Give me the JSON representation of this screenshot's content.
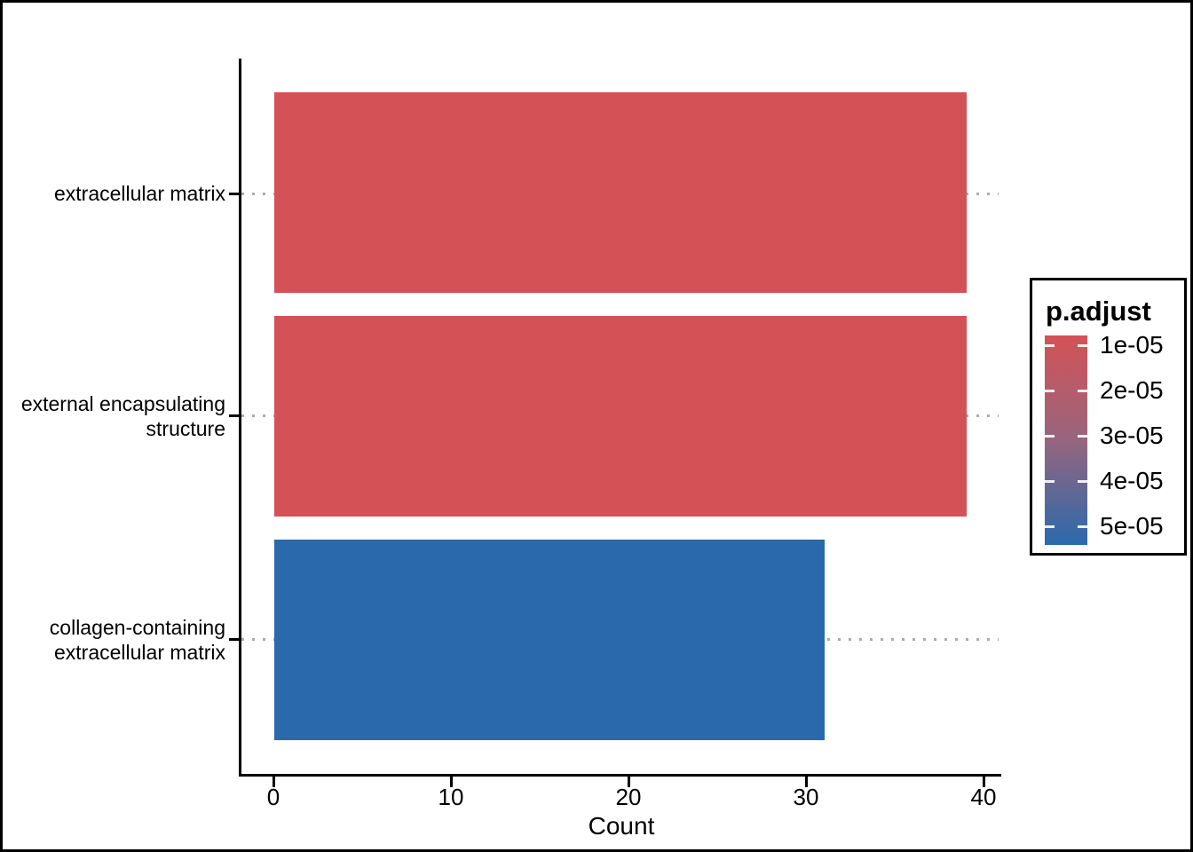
{
  "chart_data": {
    "type": "bar",
    "orientation": "horizontal",
    "title": "",
    "xlabel": "Count",
    "ylabel": "",
    "categories": [
      "extracellular matrix",
      "external encapsulating structure",
      "collagen-containing extracellular matrix"
    ],
    "label_lines": [
      [
        "extracellular matrix"
      ],
      [
        "external encapsulating",
        "structure"
      ],
      [
        "collagen-containing",
        "extracellular matrix"
      ]
    ],
    "values": [
      39,
      39,
      31
    ],
    "bar_colors": [
      "#D45256",
      "#D45256",
      "#2A6AAC"
    ],
    "x_ticks": [
      "0",
      "10",
      "20",
      "30",
      "40"
    ],
    "xlim": [
      0,
      40
    ],
    "grid": {
      "style": "dotted",
      "color": "#ABABAB",
      "direction": "horizontal"
    },
    "legend": {
      "title": "p.adjust",
      "position": "right",
      "kind": "continuous-gradient",
      "tick_labels": [
        "1e-05",
        "2e-05",
        "3e-05",
        "4e-05",
        "5e-05"
      ],
      "gradient_top_color": "#D45256",
      "gradient_mid_color": "#97657E",
      "gradient_bottom_color": "#2A6AAC"
    }
  },
  "colors": {
    "bar_red": "#D45256",
    "bar_blue": "#2A6AAC",
    "axis": "#000000",
    "grid_dots": "#ABABAB",
    "background": "#FFFFFF"
  }
}
